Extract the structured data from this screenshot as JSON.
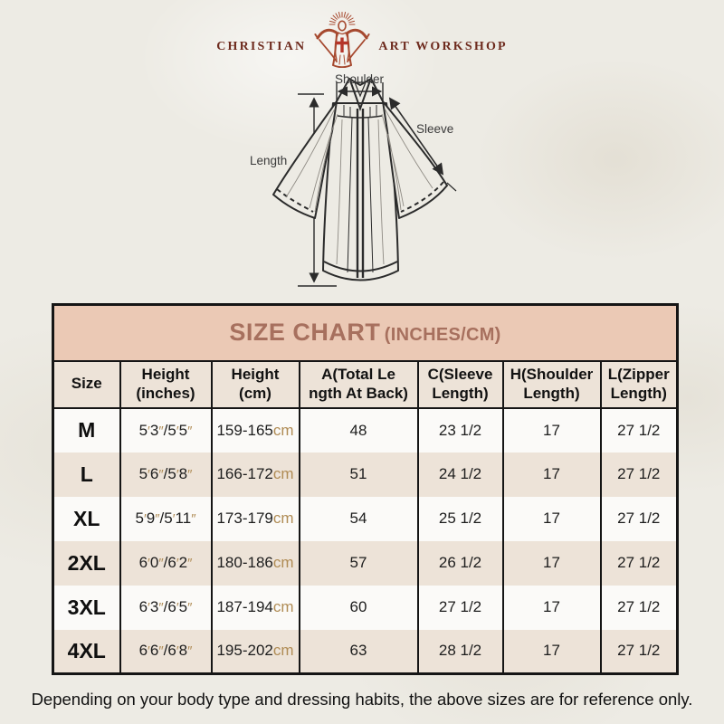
{
  "brand": {
    "name_left": "CHRISTIAN",
    "name_right": "ART WORKSHOP"
  },
  "diagram": {
    "shoulder_label": "Shoulder",
    "sleeve_label": "Sleeve",
    "length_label": "Length"
  },
  "size_chart": {
    "title": "SIZE CHART",
    "units_suffix": "(INCHES/CM)",
    "cm_suffix": "cm",
    "columns": [
      {
        "lines": [
          "Size"
        ]
      },
      {
        "lines": [
          "Height",
          "(inches)"
        ]
      },
      {
        "lines": [
          "Height",
          "(cm)"
        ]
      },
      {
        "lines": [
          "A(Total Le",
          "ngth At Back)"
        ]
      },
      {
        "lines": [
          "C(Sleeve",
          "Length)"
        ]
      },
      {
        "lines": [
          "H(Shoulder",
          "Length)"
        ]
      },
      {
        "lines": [
          "L(Zipper",
          "Length)"
        ]
      }
    ],
    "rows": [
      {
        "size": "M",
        "height_inches": "5'3\"/5'5\"",
        "height_cm": "159-165",
        "total_length_back": "48",
        "sleeve_length": "23 1/2",
        "shoulder_length": "17",
        "zipper_length": "27 1/2"
      },
      {
        "size": "L",
        "height_inches": "5'6\"/5'8\"",
        "height_cm": "166-172",
        "total_length_back": "51",
        "sleeve_length": "24 1/2",
        "shoulder_length": "17",
        "zipper_length": "27 1/2"
      },
      {
        "size": "XL",
        "height_inches": "5'9\"/5'11\"",
        "height_cm": "173-179",
        "total_length_back": "54",
        "sleeve_length": "25 1/2",
        "shoulder_length": "17",
        "zipper_length": "27 1/2"
      },
      {
        "size": "2XL",
        "height_inches": "6'0\"/6'2\"",
        "height_cm": "180-186",
        "total_length_back": "57",
        "sleeve_length": "26 1/2",
        "shoulder_length": "17",
        "zipper_length": "27 1/2"
      },
      {
        "size": "3XL",
        "height_inches": "6'3\"/6'5\"",
        "height_cm": "187-194",
        "total_length_back": "60",
        "sleeve_length": "27 1/2",
        "shoulder_length": "17",
        "zipper_length": "27 1/2"
      },
      {
        "size": "4XL",
        "height_inches": "6'6\"/6'8\"",
        "height_cm": "195-202",
        "total_length_back": "63",
        "sleeve_length": "28 1/2",
        "shoulder_length": "17",
        "zipper_length": "27 1/2"
      }
    ]
  },
  "footer": {
    "note": "Depending on your body type and dressing habits, the above sizes are for reference only."
  },
  "colors": {
    "paper_bg": "#edebe4",
    "banner_bg": "#ebc9b5",
    "banner_text": "#a7705e",
    "row_bg": "#fbfaf8",
    "row_alt_bg": "#ede3d8",
    "accent_tan": "#b08c55",
    "table_border": "#151515",
    "logo_text": "#6e2b1e",
    "logo_figure": "#a6492f",
    "cross_red": "#b5352a"
  }
}
